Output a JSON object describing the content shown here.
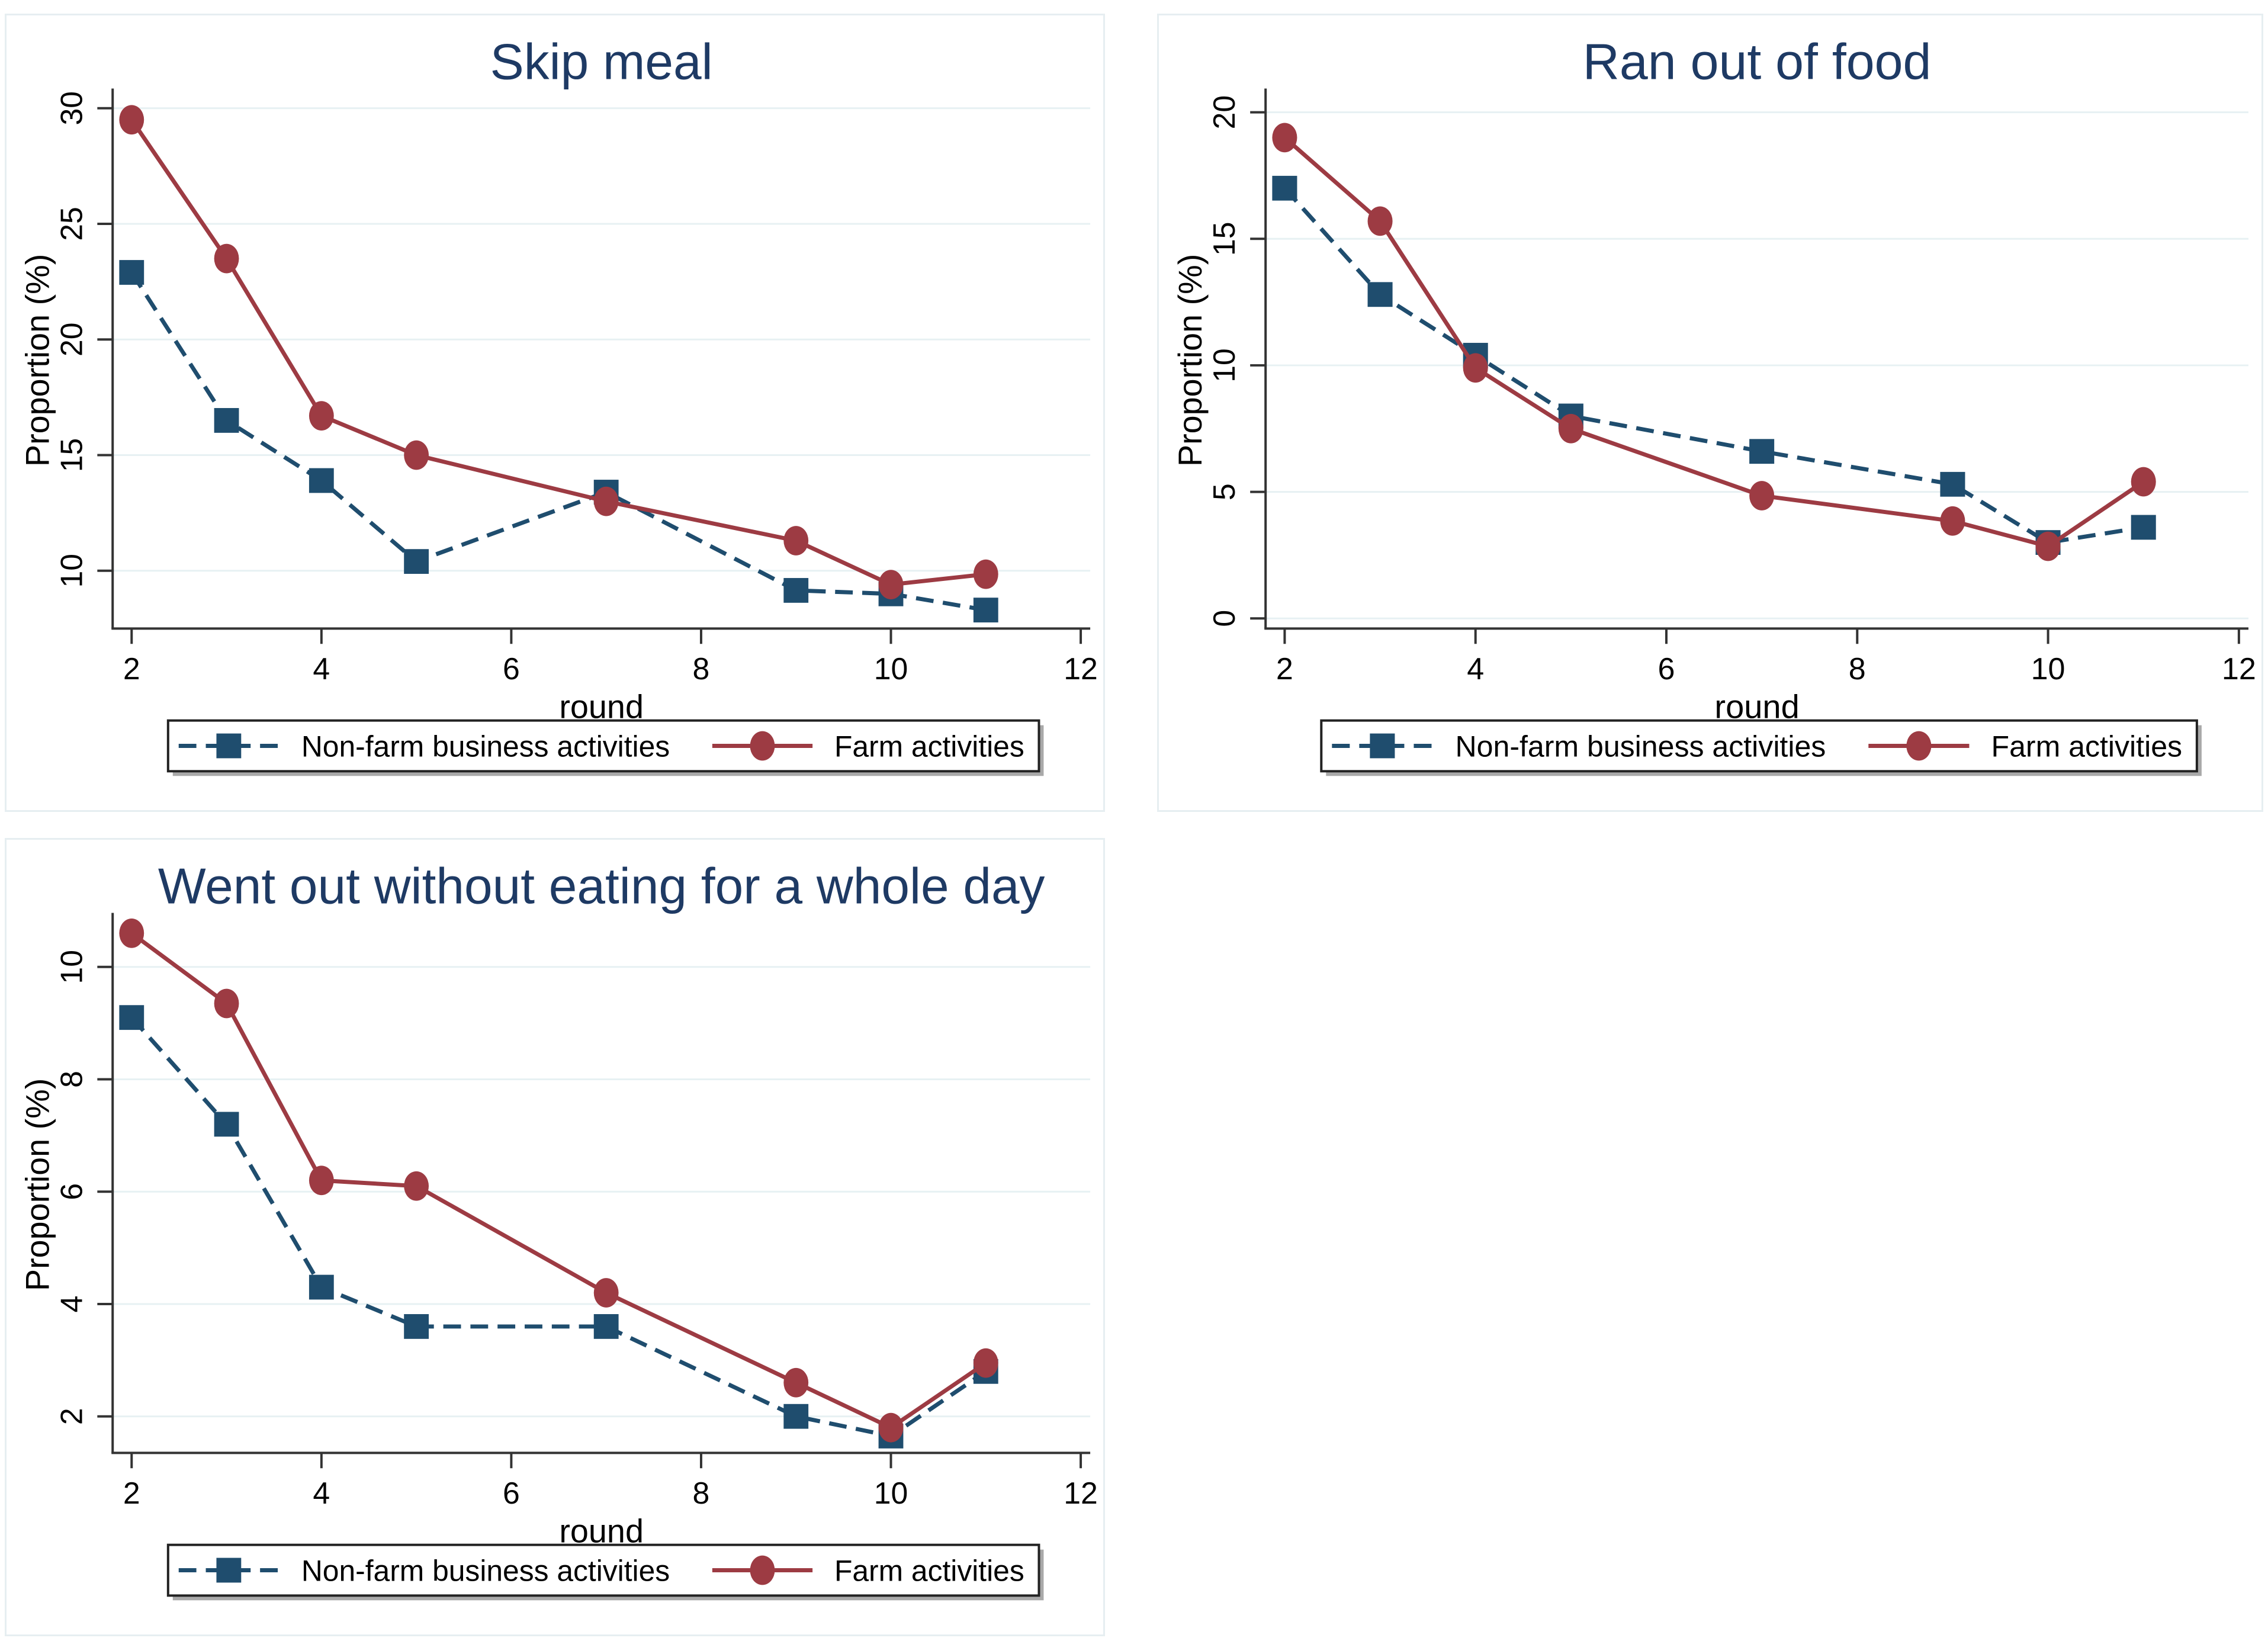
{
  "colors": {
    "nonfarm": "#1f4d6e",
    "farm": "#9d3b43",
    "grid": "#e7f1f3",
    "axis": "#333333",
    "title_text": "#1e3a64",
    "tick_text": "#000000",
    "legend_border": "#222222",
    "legend_shadow": "#a9a9a9",
    "background": "#ffffff"
  },
  "legend": {
    "items": [
      {
        "label": "Non-farm business activities",
        "series_key": "nonfarm"
      },
      {
        "label": "Farm activities",
        "series_key": "farm"
      }
    ]
  },
  "chart_data": [
    {
      "type": "line",
      "title": "Skip meal",
      "xlabel": "round",
      "ylabel": "Proportion (%)",
      "x": [
        2,
        3,
        4,
        5,
        7,
        9,
        10,
        11
      ],
      "series": [
        {
          "name": "Non-farm business activities",
          "series_key": "nonfarm",
          "line_style": "dashed",
          "marker": "square",
          "values": [
            22.9,
            16.5,
            13.9,
            10.4,
            13.4,
            9.15,
            9.0,
            8.3
          ]
        },
        {
          "name": "Farm activities",
          "series_key": "farm",
          "line_style": "solid",
          "marker": "circle",
          "values": [
            29.5,
            23.5,
            16.7,
            15.0,
            13.0,
            11.3,
            9.4,
            9.85
          ]
        }
      ],
      "xticks": [
        2,
        4,
        6,
        8,
        10,
        12
      ],
      "yticks": [
        10,
        15,
        20,
        25,
        30
      ],
      "xlim": [
        1.8,
        12.1
      ],
      "ylim": [
        7.5,
        30.7
      ],
      "grid": true,
      "legend_position": "bottom"
    },
    {
      "type": "line",
      "title": "Ran out of food",
      "xlabel": "round",
      "ylabel": "Proportion (%)",
      "x": [
        2,
        3,
        4,
        5,
        7,
        9,
        10,
        11
      ],
      "series": [
        {
          "name": "Non-farm business activities",
          "series_key": "nonfarm",
          "line_style": "dashed",
          "marker": "square",
          "values": [
            17.0,
            12.8,
            10.4,
            8.0,
            6.6,
            5.3,
            3.0,
            3.6
          ]
        },
        {
          "name": "Farm activities",
          "series_key": "farm",
          "line_style": "solid",
          "marker": "circle",
          "values": [
            19.0,
            15.7,
            9.9,
            7.5,
            4.85,
            3.85,
            2.85,
            5.4
          ]
        }
      ],
      "xticks": [
        2,
        4,
        6,
        8,
        10,
        12
      ],
      "yticks": [
        0,
        5,
        10,
        15,
        20
      ],
      "xlim": [
        1.8,
        12.1
      ],
      "ylim": [
        -0.4,
        20.8
      ],
      "grid": true,
      "legend_position": "bottom"
    },
    {
      "type": "line",
      "title": "Went out without eating for a whole day",
      "xlabel": "round",
      "ylabel": "Proportion (%)",
      "x": [
        2,
        3,
        4,
        5,
        7,
        9,
        10,
        11
      ],
      "series": [
        {
          "name": "Non-farm business activities",
          "series_key": "nonfarm",
          "line_style": "dashed",
          "marker": "square",
          "values": [
            9.1,
            7.2,
            4.3,
            3.6,
            3.6,
            2.0,
            1.65,
            2.8
          ]
        },
        {
          "name": "Farm activities",
          "series_key": "farm",
          "line_style": "solid",
          "marker": "circle",
          "values": [
            10.6,
            9.35,
            6.2,
            6.1,
            4.2,
            2.6,
            1.8,
            2.95
          ]
        }
      ],
      "xticks": [
        2,
        4,
        6,
        8,
        10,
        12
      ],
      "yticks": [
        2,
        4,
        6,
        8,
        10
      ],
      "xlim": [
        1.8,
        12.1
      ],
      "ylim": [
        1.35,
        10.9
      ],
      "grid": true,
      "legend_position": "bottom"
    }
  ]
}
